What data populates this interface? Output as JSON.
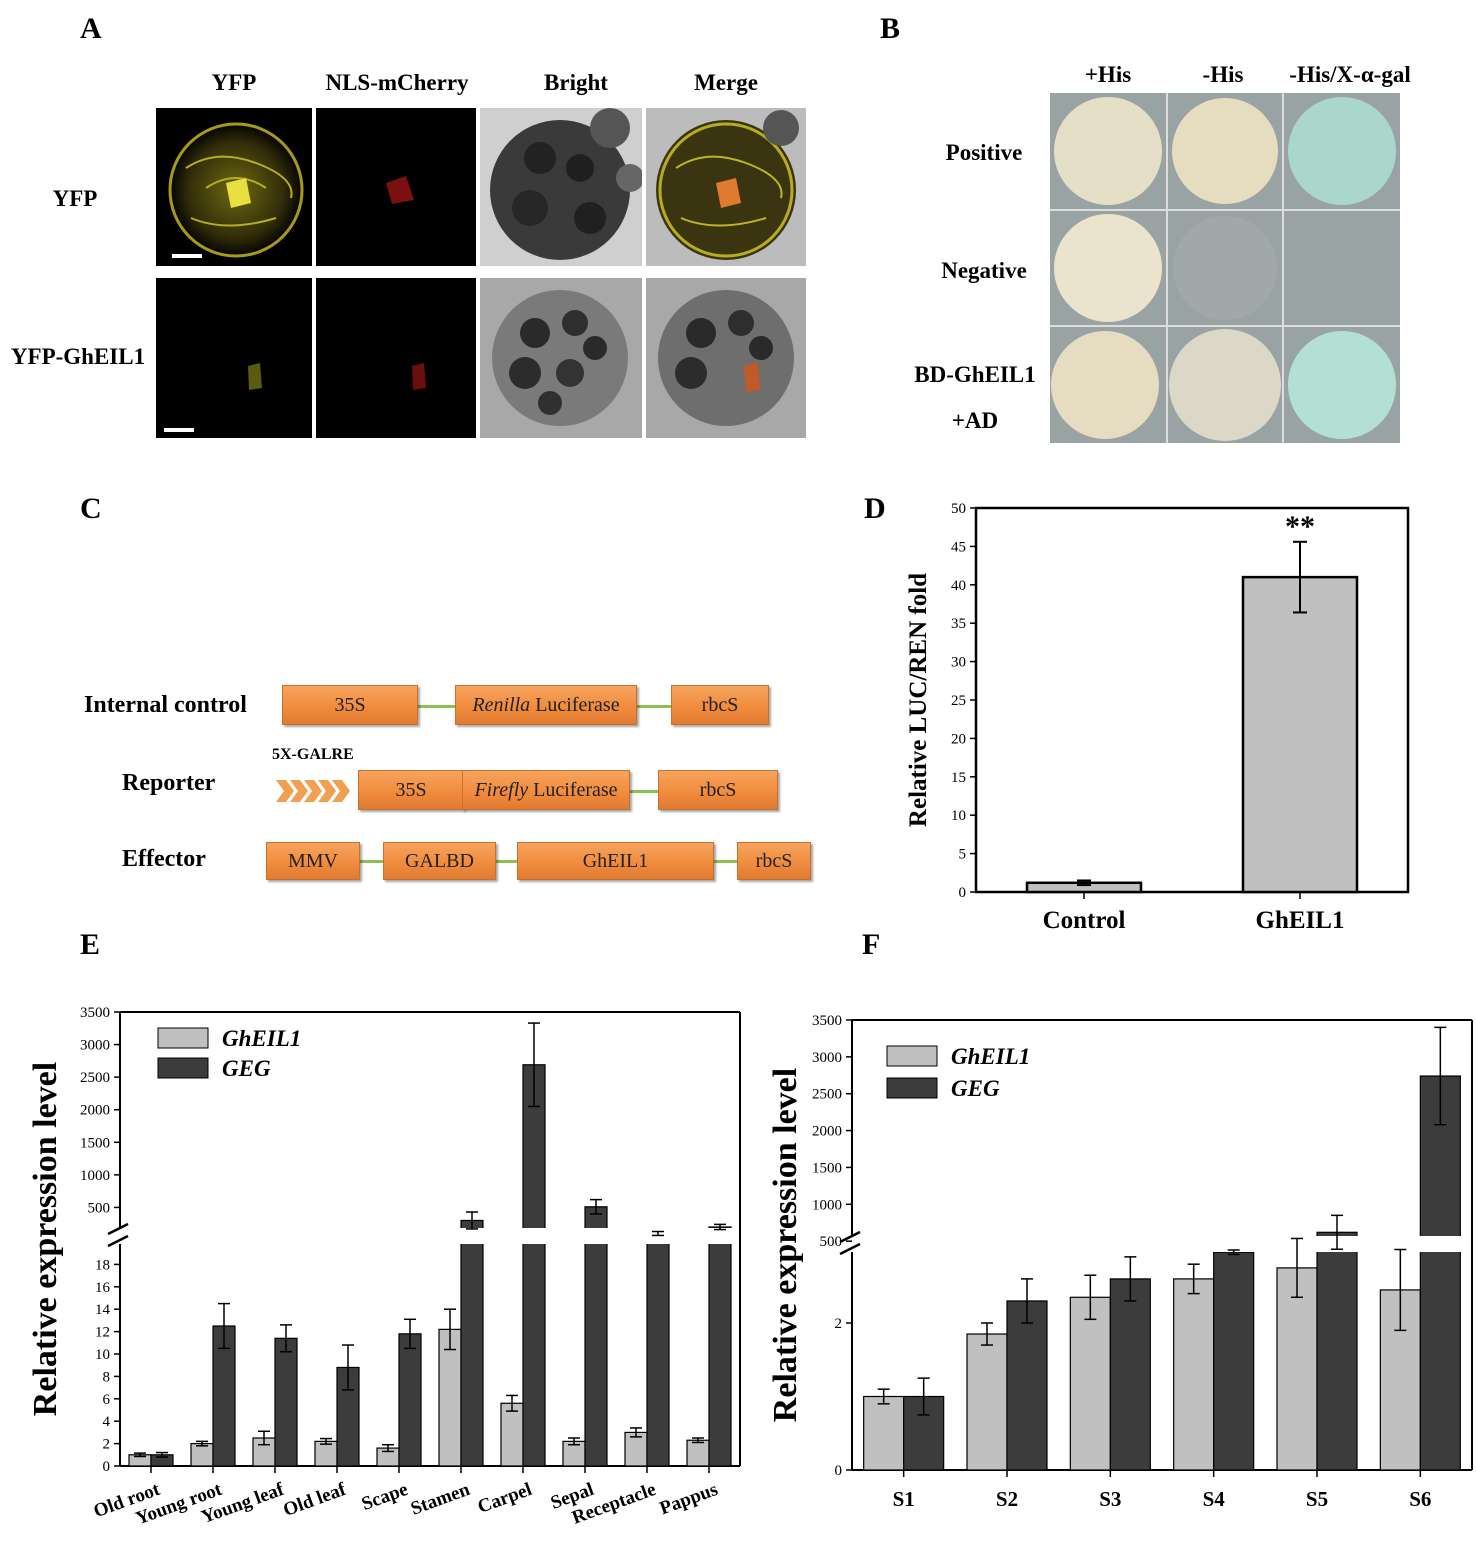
{
  "panels": {
    "A": "A",
    "B": "B",
    "C": "C",
    "D": "D",
    "E": "E",
    "F": "F"
  },
  "panelA": {
    "columns": [
      "YFP",
      "NLS-mCherry",
      "Bright",
      "Merge"
    ],
    "rows": [
      "YFP",
      "YFP-GhEIL1"
    ]
  },
  "panelB": {
    "columns": [
      "+His",
      "-His",
      "-His/X-α-gal"
    ],
    "rows": [
      "Positive",
      "Negative"
    ],
    "row3_line1": "BD-GhEIL1",
    "row3_line2": "+AD"
  },
  "panelC": {
    "internal_label": "Internal control",
    "reporter_label": "Reporter",
    "effector_label": "Effector",
    "galre": "5X-GALRE",
    "ic_35s": "35S",
    "ic_renilla_italic": "Renilla",
    "ic_luciferase": " Luciferase",
    "ic_rbcs": "rbcS",
    "rep_35s": "35S",
    "rep_firefly_italic": "Firefly",
    "rep_luciferase": " Luciferase",
    "rep_rbcs": "rbcS",
    "eff_mmv": "MMV",
    "eff_galbd": "GALBD",
    "eff_gheil1": "GhEIL1",
    "eff_rbcs": "rbcS"
  },
  "chart_data": [
    {
      "id": "D",
      "type": "bar",
      "categories": [
        "Control",
        "GhEIL1"
      ],
      "values": [
        1.2,
        41
      ],
      "errors": [
        0.3,
        4.6
      ],
      "ylabel": "Relative LUC/REN fold",
      "ylim": [
        0,
        50
      ],
      "yticks": [
        0,
        5,
        10,
        15,
        20,
        25,
        30,
        35,
        40,
        45,
        50
      ],
      "annotation": "**",
      "colors": {
        "bar": "#c0c0c0"
      }
    },
    {
      "id": "E",
      "type": "bar",
      "categories": [
        "Old root",
        "Young root",
        "Young leaf",
        "Old leaf",
        "Scape",
        "Stamen",
        "Carpel",
        "Sepal",
        "Receptacle",
        "Pappus"
      ],
      "ylabel": "Relative expression level",
      "axis_break": true,
      "lower_ylim": [
        0,
        20
      ],
      "lower_yticks": [
        0,
        2,
        4,
        6,
        8,
        10,
        12,
        14,
        16,
        18
      ],
      "upper_yticks": [
        500,
        1000,
        1500,
        2000,
        2500,
        3000,
        3500
      ],
      "upper_ylim": [
        0,
        3500
      ],
      "series": [
        {
          "name": "GhEIL1",
          "values": [
            1.0,
            2.0,
            2.5,
            2.2,
            1.6,
            12.2,
            5.6,
            2.2,
            3.0,
            2.3
          ],
          "errors": [
            0.15,
            0.2,
            0.6,
            0.25,
            0.3,
            1.8,
            0.7,
            0.3,
            0.4,
            0.2
          ]
        },
        {
          "name": "GEG",
          "values": [
            1.0,
            12.5,
            11.4,
            8.8,
            11.8,
            300,
            2690,
            510,
            100,
            200
          ],
          "errors": [
            0.2,
            2.0,
            1.2,
            2.0,
            1.3,
            130,
            640,
            110,
            30,
            40
          ]
        }
      ],
      "legend": "top-left",
      "colors": {
        "GhEIL1": "#c0c0c0",
        "GEG": "#3c3c3c"
      }
    },
    {
      "id": "F",
      "type": "bar",
      "categories": [
        "S1",
        "S2",
        "S3",
        "S4",
        "S5",
        "S6"
      ],
      "ylabel": "Relative expression level",
      "axis_break": true,
      "lower_ylim": [
        0,
        4
      ],
      "lower_yticks": [
        0,
        2
      ],
      "upper_yticks": [
        500,
        1000,
        1500,
        2000,
        2500,
        3000,
        3500
      ],
      "upper_ylim": [
        0,
        3500
      ],
      "series": [
        {
          "name": "GhEIL1",
          "values": [
            1.0,
            1.85,
            2.35,
            2.6,
            2.75,
            2.45
          ],
          "errors": [
            0.1,
            0.15,
            0.3,
            0.2,
            0.4,
            0.55
          ]
        },
        {
          "name": "GEG",
          "values": [
            1.0,
            2.3,
            2.6,
            350,
            620,
            2740
          ],
          "errors": [
            0.25,
            0.3,
            0.3,
            30,
            230,
            660
          ]
        }
      ],
      "legend": "top-left",
      "colors": {
        "GhEIL1": "#c0c0c0",
        "GEG": "#3c3c3c"
      }
    }
  ]
}
